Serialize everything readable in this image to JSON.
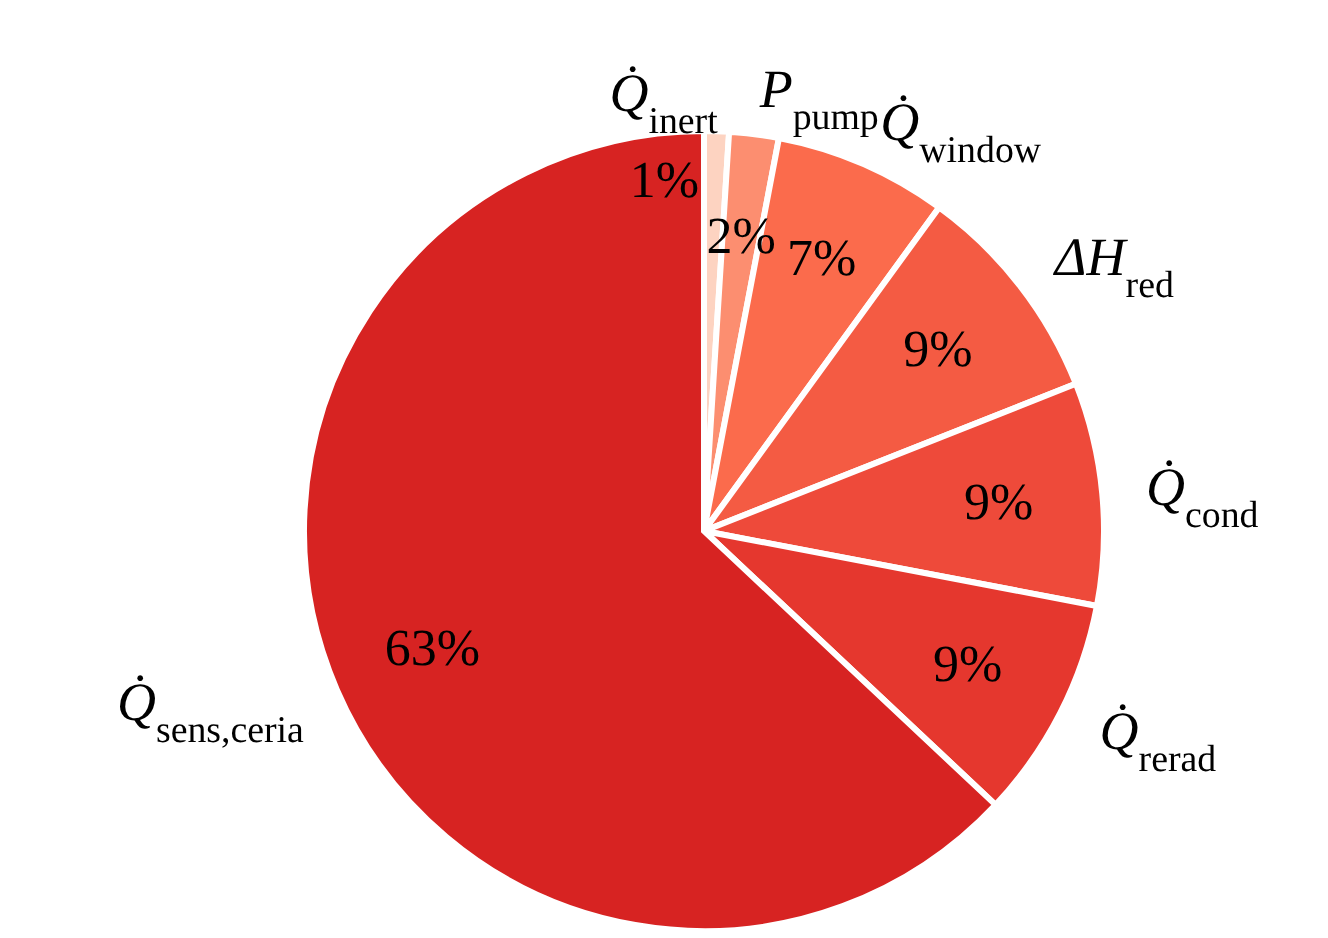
{
  "chart_data": {
    "type": "pie",
    "categories": [
      "Q̇$_{inert}$",
      "P$_{pump}$",
      "Q̇$_{window}$",
      "ΔH$_{red}$",
      "Q̇$_{cond}$",
      "Q̇$_{rerad}$",
      "Q̇$_{sens,ceria}$"
    ],
    "values": [
      1,
      2,
      7,
      9,
      9,
      9,
      63
    ],
    "colors": [
      "#fdd3c1",
      "#fc8e70",
      "#fb6b4c",
      "#f45b43",
      "#ee4a3a",
      "#e5372e",
      "#d72322"
    ],
    "value_labels": [
      "1%",
      "2%",
      "7%",
      "9%",
      "9%",
      "9%",
      "63%"
    ]
  }
}
